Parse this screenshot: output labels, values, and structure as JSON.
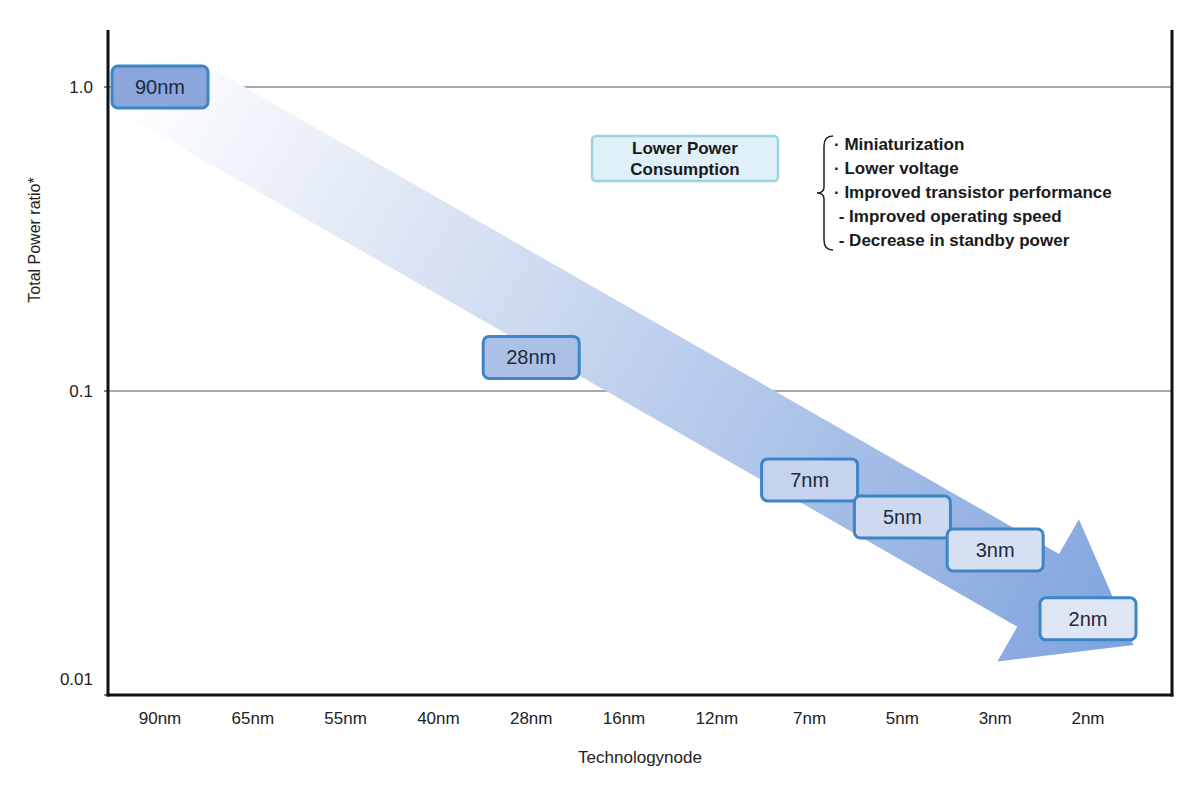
{
  "chart_data": {
    "type": "scatter",
    "categories": [
      "90nm",
      "65nm",
      "55nm",
      "40nm",
      "28nm",
      "16nm",
      "12nm",
      "7nm",
      "5nm",
      "3nm",
      "2nm"
    ],
    "values": [
      1.0,
      null,
      null,
      null,
      0.129,
      null,
      null,
      0.051,
      0.0385,
      0.03,
      0.0178
    ],
    "color": "#3d85c6",
    "marker": "box",
    "y_label": "Total Power ratio*",
    "x_label": "Technologynode",
    "log": "y",
    "grid": true,
    "ylim": [
      0.01,
      1.54
    ],
    "yticks": [
      {
        "value": 1,
        "label": "1.0"
      },
      0.1,
      0.01
    ],
    "annotations": [
      [
        "Lower Power",
        "Consumption"
      ],
      [
        "· Miniaturization",
        "· Lower voltage",
        "· Improved transistor performance",
        " - Improved operating speed",
        " - Decrease in standby power"
      ]
    ]
  }
}
